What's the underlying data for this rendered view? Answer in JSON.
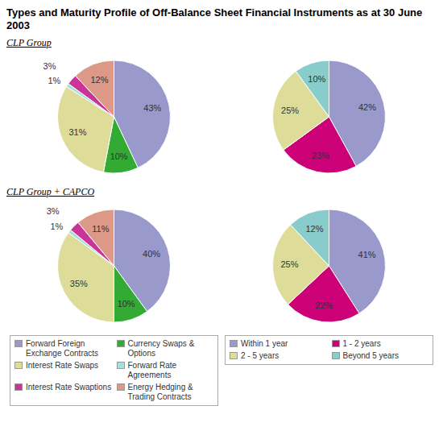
{
  "title": "Types and Maturity Profile of Off-Balance Sheet Financial Instruments as at 30 June 2003",
  "chart_data": [
    {
      "type": "pie",
      "subtitle": "CLP Group",
      "categories": [
        "Forward Foreign Exchange Contracts",
        "Currency Swaps & Options",
        "Interest Rate Swaps",
        "Forward Rate Agreements",
        "Interest Rate Swaptions",
        "Energy Hedging & Trading Contracts"
      ],
      "values": [
        43,
        10,
        31,
        1,
        3,
        12
      ],
      "value_labels": [
        "43%",
        "10%",
        "31%",
        "1%",
        "3%",
        "12%"
      ],
      "colors": [
        "#9999cc",
        "#33aa33",
        "#dddd99",
        "#aadddd",
        "#cc3399",
        "#dd9988"
      ],
      "data_labels": true
    },
    {
      "type": "pie",
      "categories": [
        "Within 1 year",
        "1 - 2 years",
        "2 - 5 years",
        "Beyond 5 years"
      ],
      "values": [
        42,
        23,
        25,
        10
      ],
      "value_labels": [
        "42%",
        "23%",
        "25%",
        "10%"
      ],
      "colors": [
        "#9999cc",
        "#cc0077",
        "#dddd99",
        "#88cccc"
      ],
      "data_labels": true
    },
    {
      "type": "pie",
      "subtitle": "CLP Group + CAPCO",
      "categories": [
        "Forward Foreign Exchange Contracts",
        "Currency Swaps & Options",
        "Interest Rate Swaps",
        "Forward Rate Agreements",
        "Interest Rate Swaptions",
        "Energy Hedging & Trading Contracts"
      ],
      "values": [
        40,
        10,
        35,
        1,
        3,
        11
      ],
      "value_labels": [
        "40%",
        "10%",
        "35%",
        "1%",
        "3%",
        "11%"
      ],
      "colors": [
        "#9999cc",
        "#33aa33",
        "#dddd99",
        "#aadddd",
        "#cc3399",
        "#dd9988"
      ],
      "data_labels": true,
      "legend": "bottom"
    },
    {
      "type": "pie",
      "categories": [
        "Within 1 year",
        "1 - 2 years",
        "2 - 5 years",
        "Beyond 5 years"
      ],
      "values": [
        41,
        22,
        25,
        12
      ],
      "value_labels": [
        "41%",
        "22%",
        "25%",
        "12%"
      ],
      "colors": [
        "#9999cc",
        "#cc0077",
        "#dddd99",
        "#88cccc"
      ],
      "data_labels": true,
      "legend": "bottom"
    }
  ]
}
